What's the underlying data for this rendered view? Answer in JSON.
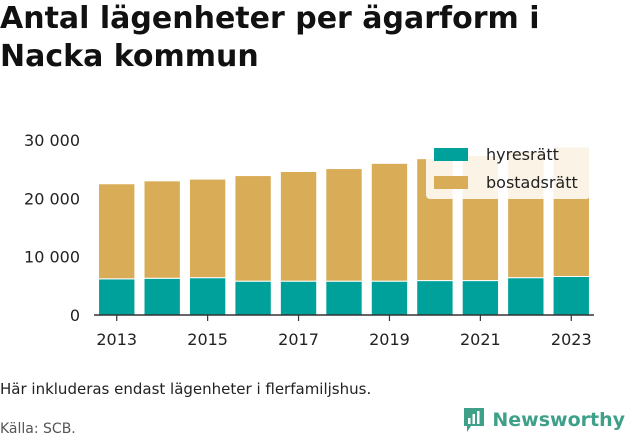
{
  "title": "Antal lägenheter per ägarform i Nacka kommun",
  "note": "Här inkluderas endast lägenheter i flerfamiljshus.",
  "source": "Källa: SCB.",
  "brand": {
    "name": "Newsworthy",
    "logo_icon": "newsworthy-bar-chart-logo-icon"
  },
  "colors": {
    "hyresratt": "#00a19a",
    "bostadsratt": "#d9ac57",
    "legend_bg": "#ffffff"
  },
  "chart_data": {
    "type": "bar",
    "stacked": true,
    "categories": [
      "2013",
      "2014",
      "2015",
      "2016",
      "2017",
      "2018",
      "2019",
      "2020",
      "2021",
      "2022",
      "2023"
    ],
    "x_tick_labels": [
      "2013",
      "2015",
      "2017",
      "2019",
      "2021",
      "2023"
    ],
    "series": [
      {
        "name": "hyresrätt",
        "values": [
          6200,
          6300,
          6400,
          5800,
          5800,
          5800,
          5800,
          5900,
          5900,
          6400,
          6600
        ]
      },
      {
        "name": "bostadsrätt",
        "values": [
          16300,
          16700,
          16900,
          18100,
          18800,
          19300,
          20200,
          20900,
          21400,
          21700,
          22200
        ]
      }
    ],
    "ylim": [
      0,
      30000
    ],
    "y_ticks": [
      0,
      10000,
      20000,
      30000
    ],
    "y_tick_labels": [
      "0",
      "10 000",
      "20 000",
      "30 000"
    ],
    "grid": false,
    "legend": "top-right"
  }
}
